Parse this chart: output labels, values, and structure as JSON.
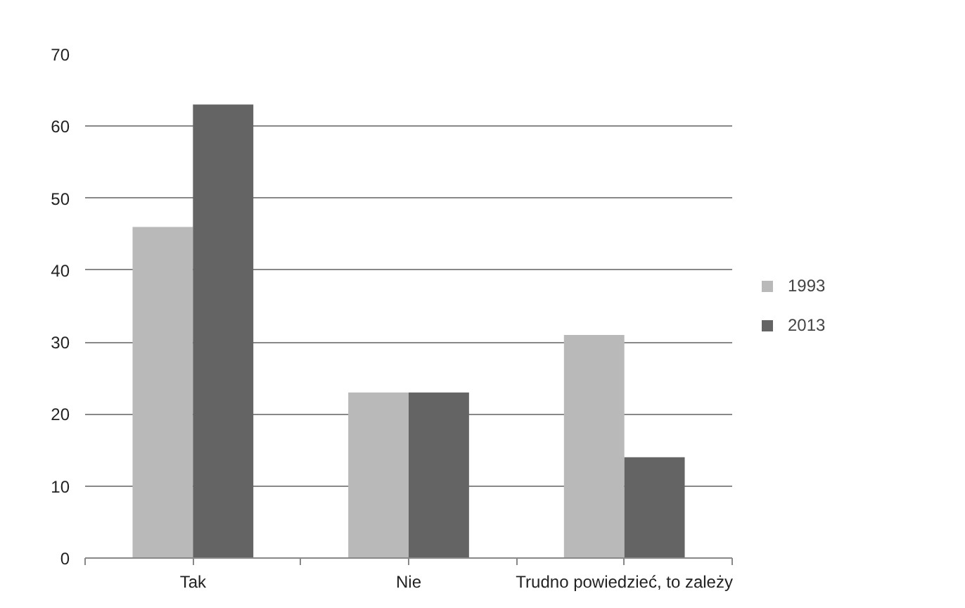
{
  "chart_data": {
    "type": "bar",
    "categories": [
      "Tak",
      "Nie",
      "Trudno powiedzieć, to zależy"
    ],
    "series": [
      {
        "name": "1993",
        "color": "#b9b9b9",
        "values": [
          46,
          23,
          31
        ]
      },
      {
        "name": "2013",
        "color": "#646464",
        "values": [
          63,
          23,
          14
        ]
      }
    ],
    "ylim": [
      0,
      70
    ],
    "yticks": [
      0,
      10,
      20,
      30,
      40,
      50,
      60,
      70
    ],
    "grid": "y",
    "legend": "right"
  }
}
